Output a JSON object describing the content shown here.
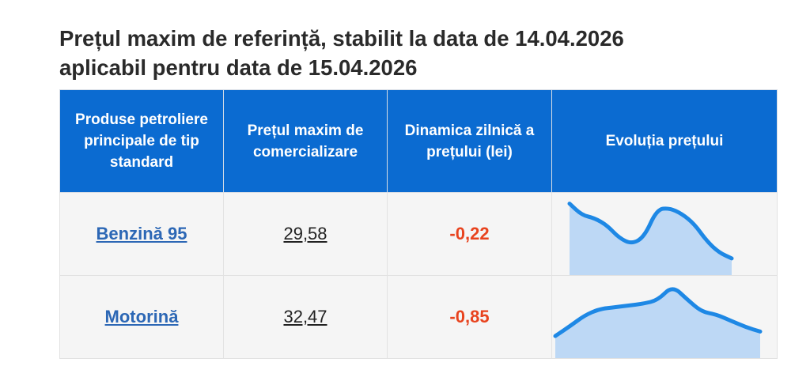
{
  "title": {
    "line1": "Prețul maxim de referință, stabilit la data de 14.04.2026",
    "line2": "aplicabil pentru data de 15.04.2026"
  },
  "table": {
    "headers": {
      "product": "Produse petroliere principale de tip standard",
      "price": "Prețul maxim de comercializare",
      "delta": "Dinamica zilnică a prețului (lei)",
      "trend": "Evoluția prețului"
    },
    "rows": [
      {
        "product": "Benzină 95",
        "price": "29,58",
        "delta": "-0,22",
        "trend": [
          98,
          90,
          88,
          83,
          74,
          70,
          75,
          94,
          95,
          91,
          84,
          72,
          64,
          60
        ]
      },
      {
        "product": "Motorină",
        "price": "32,47",
        "delta": "-0,85",
        "trend": [
          22,
          33,
          45,
          52,
          54,
          56,
          58,
          62,
          78,
          63,
          49,
          46,
          39,
          32,
          27
        ]
      }
    ]
  },
  "colors": {
    "header_bg": "#0b6bd1",
    "link": "#2c67b5",
    "negative": "#e8431e",
    "spark_line": "#1e88e5",
    "spark_fill": "#a9cdf4"
  }
}
